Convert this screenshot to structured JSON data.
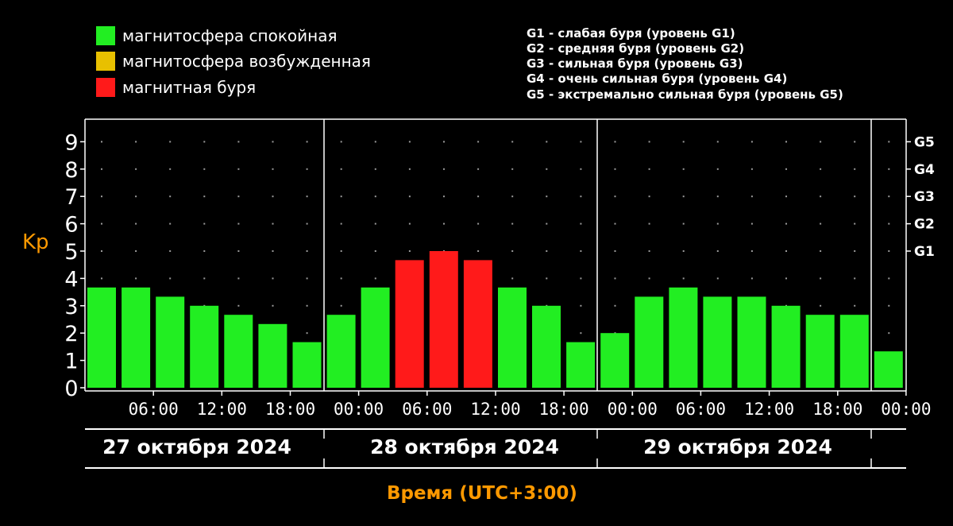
{
  "chart_data": {
    "type": "bar",
    "ylabel": "Kp",
    "xlabel": "Время (UTC+3:00)",
    "ylim": [
      0,
      9.5
    ],
    "yticks": [
      "0",
      "1",
      "2",
      "3",
      "4",
      "5",
      "6",
      "7",
      "8",
      "9"
    ],
    "grid": "dotted",
    "legend_position": "top-left",
    "legend": [
      {
        "label": "магнитосфера спокойная",
        "color": "#22ee22"
      },
      {
        "label": "магнитосфера возбужденная",
        "color": "#e8c000"
      },
      {
        "label": "магнитная буря",
        "color": "#ff1a1a"
      }
    ],
    "storm_levels": [
      "G1 - слабая буря (уровень G1)",
      "G2 - средняя буря (уровень G2)",
      "G3 - сильная буря (уровень G3)",
      "G4 - очень сильная буря (уровень G4)",
      "G5 - экстремально сильная буря (уровень G5)"
    ],
    "g_axis": [
      {
        "label": "G1",
        "kp": 5
      },
      {
        "label": "G2",
        "kp": 6
      },
      {
        "label": "G3",
        "kp": 7
      },
      {
        "label": "G4",
        "kp": 8
      },
      {
        "label": "G5",
        "kp": 9
      }
    ],
    "time_ticks": [
      "06:00",
      "12:00",
      "18:00",
      "00:00",
      "06:00",
      "12:00",
      "18:00",
      "00:00",
      "06:00",
      "12:00",
      "18:00",
      "00:00"
    ],
    "days": [
      "27 октября 2024",
      "28 октября 2024",
      "29 октября 2024"
    ],
    "values": [
      3.67,
      3.67,
      3.33,
      3.0,
      2.67,
      2.33,
      1.67,
      2.67,
      3.67,
      4.67,
      5.0,
      4.67,
      3.67,
      3.0,
      1.67,
      2.0,
      3.33,
      3.67,
      3.33,
      3.33,
      3.0,
      2.67,
      2.67,
      1.33
    ],
    "bar_status": [
      "quiet",
      "quiet",
      "quiet",
      "quiet",
      "quiet",
      "quiet",
      "quiet",
      "quiet",
      "quiet",
      "storm",
      "storm",
      "storm",
      "quiet",
      "quiet",
      "quiet",
      "quiet",
      "quiet",
      "quiet",
      "quiet",
      "quiet",
      "quiet",
      "quiet",
      "quiet",
      "quiet"
    ],
    "status_colors": {
      "quiet": "#22ee22",
      "active": "#e8c000",
      "storm": "#ff1a1a"
    }
  }
}
